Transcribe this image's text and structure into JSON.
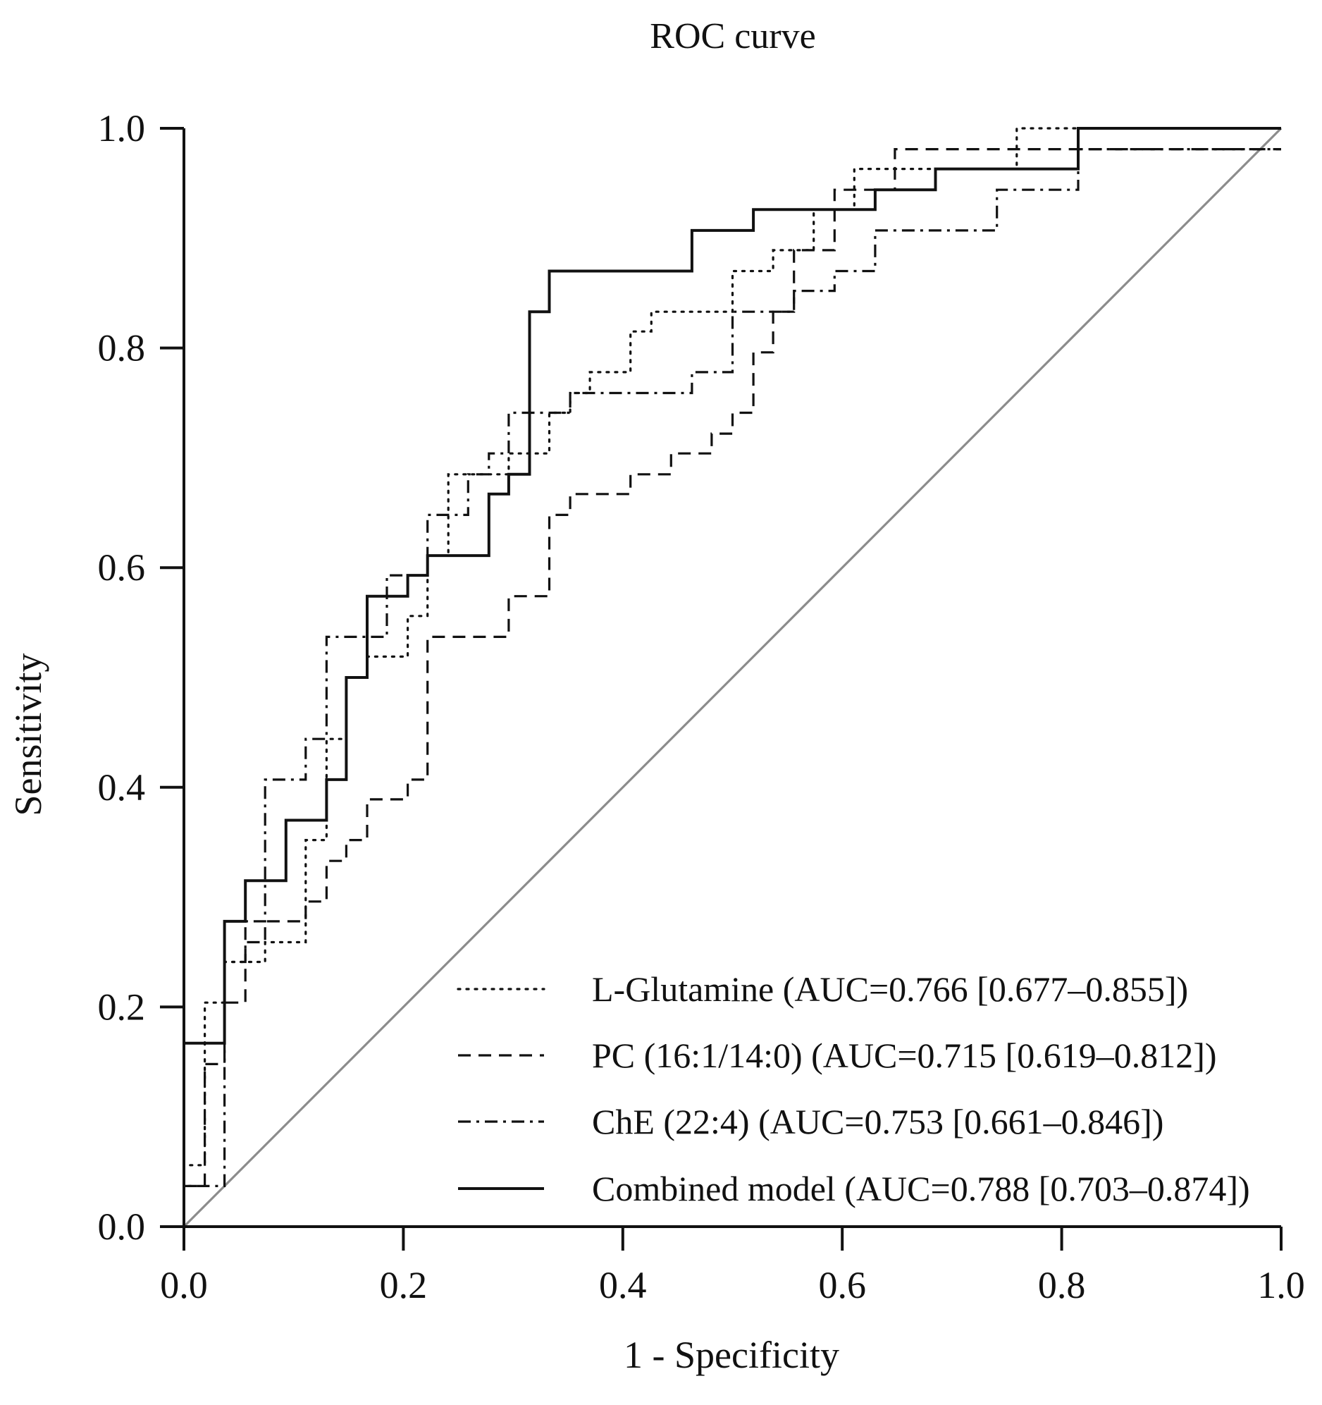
{
  "chart_data": {
    "type": "line",
    "title": "ROC curve",
    "xlabel": "1 - Specificity",
    "ylabel": "Sensitivity",
    "xlim": [
      0,
      1
    ],
    "ylim": [
      0,
      1
    ],
    "x_ticks": [
      "0.0",
      "0.2",
      "0.4",
      "0.6",
      "0.8",
      "1.0"
    ],
    "y_ticks": [
      "0.0",
      "0.2",
      "0.4",
      "0.6",
      "0.8",
      "1.0"
    ],
    "grid": false,
    "legend_position": "bottom-right",
    "reference_line": {
      "name": "chance",
      "x": [
        0,
        1
      ],
      "y": [
        0,
        1
      ],
      "color": "#8c8c8c"
    },
    "series": [
      {
        "name": "L-Glutamine",
        "label": "L-Glutamine (AUC=0.766 [0.677–0.855])",
        "auc": 0.766,
        "ci": [
          0.677,
          0.855
        ],
        "style": "dotted",
        "color": "#111111",
        "x": [
          0,
          0,
          0.019,
          0.019,
          0.019,
          0.037,
          0.037,
          0.056,
          0.056,
          0.074,
          0.074,
          0.093,
          0.093,
          0.111,
          0.111,
          0.13,
          0.13,
          0.148,
          0.148,
          0.167,
          0.167,
          0.185,
          0.185,
          0.204,
          0.204,
          0.222,
          0.222,
          0.241,
          0.241,
          0.259,
          0.259,
          0.296,
          0.296,
          0.333,
          0.333,
          0.352,
          0.352,
          0.37,
          0.37,
          0.407,
          0.407,
          0.426,
          0.426,
          0.444,
          0.444,
          0.5,
          0.5,
          0.537,
          0.537,
          0.556,
          0.556,
          0.574,
          0.574,
          0.611,
          0.611,
          0.63,
          0.63,
          0.667,
          0.667,
          0.759,
          0.759,
          0.815,
          0.815,
          1
        ],
        "y": [
          0,
          0.056,
          0.056,
          0.111,
          0.204,
          0.204,
          0.241,
          0.241,
          0.241,
          0.241,
          0.259,
          0.259,
          0.259,
          0.259,
          0.352,
          0.352,
          0.444,
          0.444,
          0.5,
          0.5,
          0.519,
          0.519,
          0.519,
          0.519,
          0.556,
          0.556,
          0.611,
          0.611,
          0.685,
          0.685,
          0.685,
          0.685,
          0.704,
          0.704,
          0.741,
          0.741,
          0.759,
          0.759,
          0.778,
          0.778,
          0.815,
          0.815,
          0.833,
          0.833,
          0.833,
          0.833,
          0.87,
          0.87,
          0.889,
          0.889,
          0.889,
          0.889,
          0.926,
          0.926,
          0.963,
          0.963,
          0.963,
          0.963,
          0.963,
          0.963,
          1,
          1,
          1,
          1
        ]
      },
      {
        "name": "PC (16:1/14:0)",
        "label": "PC (16:1/14:0) (AUC=0.715 [0.619–0.812])",
        "auc": 0.715,
        "ci": [
          0.619,
          0.812
        ],
        "style": "dashed",
        "color": "#111111",
        "x": [
          0,
          0,
          0.019,
          0.019,
          0.037,
          0.037,
          0.056,
          0.056,
          0.074,
          0.074,
          0.093,
          0.093,
          0.111,
          0.111,
          0.13,
          0.13,
          0.148,
          0.148,
          0.167,
          0.167,
          0.185,
          0.185,
          0.204,
          0.204,
          0.222,
          0.222,
          0.296,
          0.296,
          0.333,
          0.333,
          0.352,
          0.352,
          0.407,
          0.407,
          0.444,
          0.444,
          0.481,
          0.481,
          0.5,
          0.5,
          0.519,
          0.519,
          0.537,
          0.537,
          0.556,
          0.556,
          0.593,
          0.593,
          0.648,
          0.648,
          0.815,
          0.815,
          1
        ],
        "y": [
          0,
          0.037,
          0.037,
          0.148,
          0.148,
          0.204,
          0.204,
          0.259,
          0.259,
          0.278,
          0.278,
          0.278,
          0.278,
          0.296,
          0.296,
          0.333,
          0.333,
          0.352,
          0.352,
          0.389,
          0.389,
          0.389,
          0.389,
          0.407,
          0.407,
          0.537,
          0.537,
          0.574,
          0.574,
          0.648,
          0.648,
          0.667,
          0.667,
          0.685,
          0.685,
          0.704,
          0.704,
          0.722,
          0.722,
          0.741,
          0.741,
          0.796,
          0.796,
          0.833,
          0.833,
          0.889,
          0.889,
          0.944,
          0.944,
          0.981,
          0.981,
          0.981,
          0.981
        ]
      },
      {
        "name": "ChE (22:4)",
        "label": "ChE (22:4) (AUC=0.753 [0.661–0.846])",
        "auc": 0.753,
        "ci": [
          0.661,
          0.846
        ],
        "style": "dashdot",
        "color": "#111111",
        "x": [
          0,
          0,
          0.037,
          0.037,
          0.056,
          0.056,
          0.074,
          0.074,
          0.111,
          0.111,
          0.13,
          0.13,
          0.148,
          0.148,
          0.185,
          0.185,
          0.222,
          0.222,
          0.241,
          0.241,
          0.259,
          0.259,
          0.278,
          0.278,
          0.296,
          0.296,
          0.352,
          0.352,
          0.37,
          0.37,
          0.463,
          0.463,
          0.5,
          0.5,
          0.556,
          0.556,
          0.593,
          0.593,
          0.63,
          0.63,
          0.741,
          0.741,
          0.815,
          0.815,
          1
        ],
        "y": [
          0,
          0.037,
          0.037,
          0.241,
          0.241,
          0.278,
          0.278,
          0.407,
          0.407,
          0.444,
          0.444,
          0.537,
          0.537,
          0.537,
          0.537,
          0.593,
          0.593,
          0.648,
          0.648,
          0.648,
          0.648,
          0.685,
          0.685,
          0.704,
          0.704,
          0.741,
          0.741,
          0.759,
          0.759,
          0.759,
          0.759,
          0.778,
          0.778,
          0.833,
          0.833,
          0.852,
          0.852,
          0.87,
          0.87,
          0.907,
          0.907,
          0.944,
          0.944,
          0.981,
          0.981
        ]
      },
      {
        "name": "Combined model",
        "label": "Combined model (AUC=0.788 [0.703–0.874])",
        "auc": 0.788,
        "ci": [
          0.703,
          0.874
        ],
        "style": "solid",
        "color": "#111111",
        "x": [
          0,
          0,
          0.037,
          0.037,
          0.056,
          0.056,
          0.093,
          0.093,
          0.13,
          0.13,
          0.148,
          0.148,
          0.167,
          0.167,
          0.204,
          0.204,
          0.222,
          0.222,
          0.259,
          0.259,
          0.278,
          0.278,
          0.296,
          0.296,
          0.315,
          0.315,
          0.333,
          0.333,
          0.463,
          0.463,
          0.519,
          0.519,
          0.63,
          0.63,
          0.648,
          0.648,
          0.685,
          0.685,
          0.815,
          0.815,
          1
        ],
        "y": [
          0,
          0.167,
          0.167,
          0.278,
          0.278,
          0.315,
          0.315,
          0.37,
          0.37,
          0.407,
          0.407,
          0.5,
          0.5,
          0.574,
          0.574,
          0.593,
          0.593,
          0.611,
          0.611,
          0.611,
          0.611,
          0.667,
          0.667,
          0.685,
          0.685,
          0.833,
          0.833,
          0.87,
          0.87,
          0.907,
          0.907,
          0.926,
          0.926,
          0.944,
          0.944,
          0.944,
          0.944,
          0.963,
          0.963,
          1,
          1
        ]
      }
    ]
  }
}
